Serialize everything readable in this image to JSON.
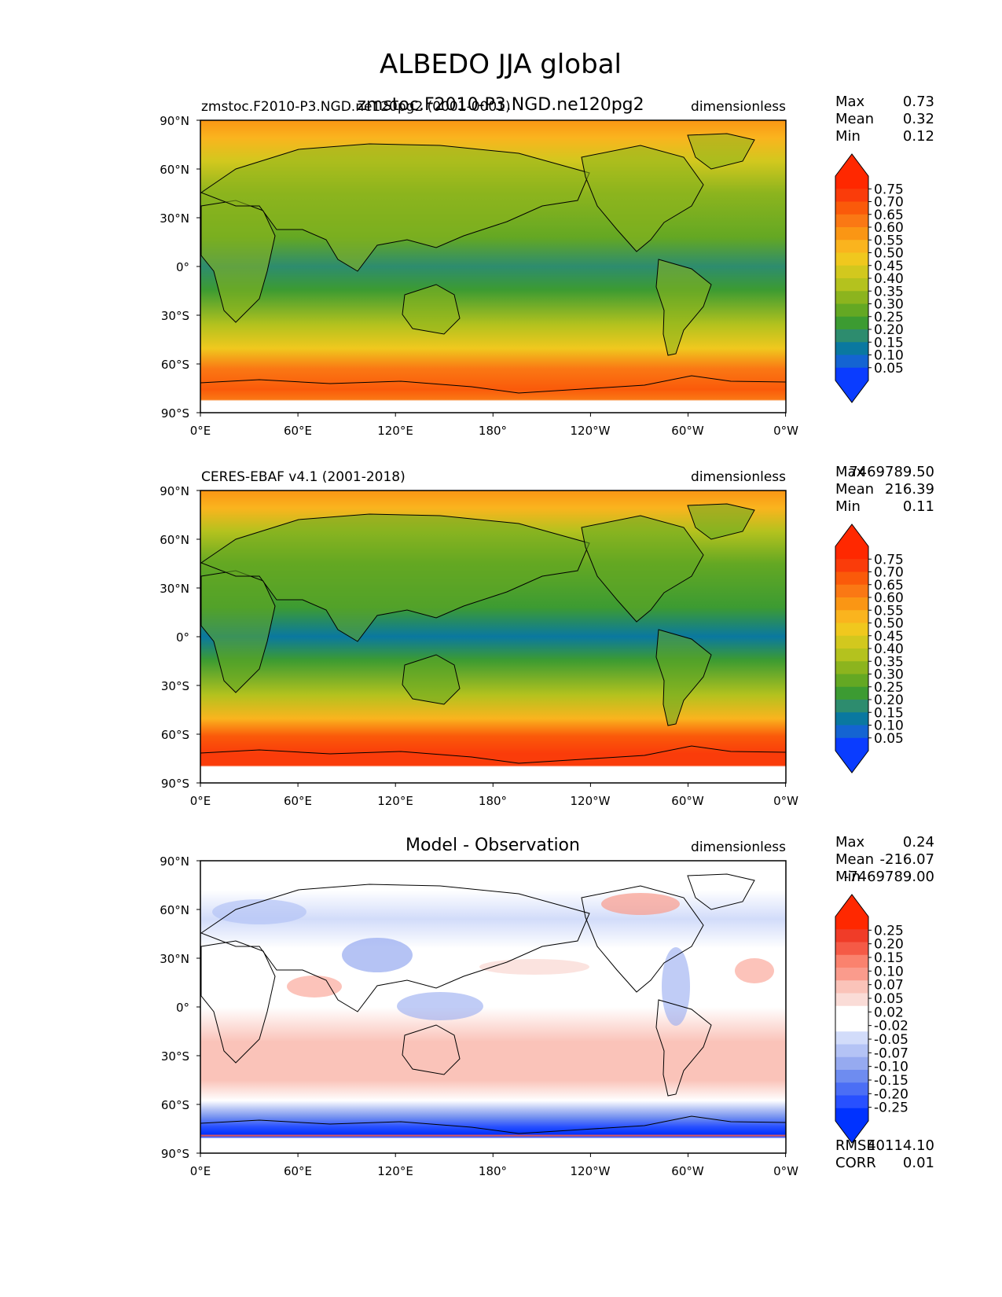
{
  "figure": {
    "title": "ALBEDO JJA global"
  },
  "lat_ticks": [
    "90°N",
    "60°N",
    "30°N",
    "0°",
    "30°S",
    "60°S",
    "90°S"
  ],
  "lon_ticks": [
    "0°E",
    "60°E",
    "120°E",
    "180°",
    "120°W",
    "60°W",
    "0°W"
  ],
  "colors": {
    "field": [
      "#0a3cff",
      "#1464d2",
      "#0a78a0",
      "#2d8c6e",
      "#3c9b32",
      "#64a823",
      "#8cb41e",
      "#b4c21e",
      "#d2c81e",
      "#f0c81e",
      "#fab41e",
      "#fa9614",
      "#fa7814",
      "#fa5a0a",
      "#fa3c0a",
      "#ff2800"
    ],
    "diff": [
      "#0032ff",
      "#2850ff",
      "#4b6ef5",
      "#6e8cf0",
      "#96aaf0",
      "#b4c3f5",
      "#d2dcfa",
      "#ffffff",
      "#ffffff",
      "#fadcd7",
      "#fac3b9",
      "#fa9b8c",
      "#fa826e",
      "#f55a46",
      "#f03c28",
      "#ff2800"
    ]
  },
  "panels": [
    {
      "left_title": "zmstoc.F2010-P3.NGD.ne120pg2 (0001-0001)",
      "center_title": "zmstoc.F2010-P3.NGD.ne120pg2",
      "right_title": "dimensionless",
      "stats": [
        {
          "label": "Max",
          "value": "0.73"
        },
        {
          "label": "Mean",
          "value": "0.32"
        },
        {
          "label": "Min",
          "value": "0.12"
        }
      ],
      "colorbar": [
        "0.75",
        "0.70",
        "0.65",
        "0.60",
        "0.55",
        "0.50",
        "0.45",
        "0.40",
        "0.35",
        "0.30",
        "0.25",
        "0.20",
        "0.15",
        "0.10",
        "0.05"
      ]
    },
    {
      "left_title": "CERES-EBAF v4.1 (2001-2018)",
      "center_title": "",
      "right_title": "dimensionless",
      "stats": [
        {
          "label": "Max",
          "value": "7469789.50"
        },
        {
          "label": "Mean",
          "value": "216.39"
        },
        {
          "label": "Min",
          "value": "0.11"
        }
      ],
      "colorbar": [
        "0.75",
        "0.70",
        "0.65",
        "0.60",
        "0.55",
        "0.50",
        "0.45",
        "0.40",
        "0.35",
        "0.30",
        "0.25",
        "0.20",
        "0.15",
        "0.10",
        "0.05"
      ]
    },
    {
      "left_title": "",
      "center_title": "Model - Observation",
      "right_title": "dimensionless",
      "stats": [
        {
          "label": "Max",
          "value": "0.24"
        },
        {
          "label": "Mean",
          "value": "-216.07"
        },
        {
          "label": "Min",
          "value": "-7469789.00"
        }
      ],
      "colorbar": [
        "0.25",
        "0.20",
        "0.15",
        "0.10",
        "0.07",
        "0.05",
        "0.02",
        "-0.02",
        "-0.05",
        "-0.07",
        "-0.10",
        "-0.15",
        "-0.20",
        "-0.25"
      ],
      "bottom_stats": [
        {
          "label": "RMSE",
          "value": "40114.10"
        },
        {
          "label": "CORR",
          "value": "0.01"
        }
      ]
    }
  ]
}
